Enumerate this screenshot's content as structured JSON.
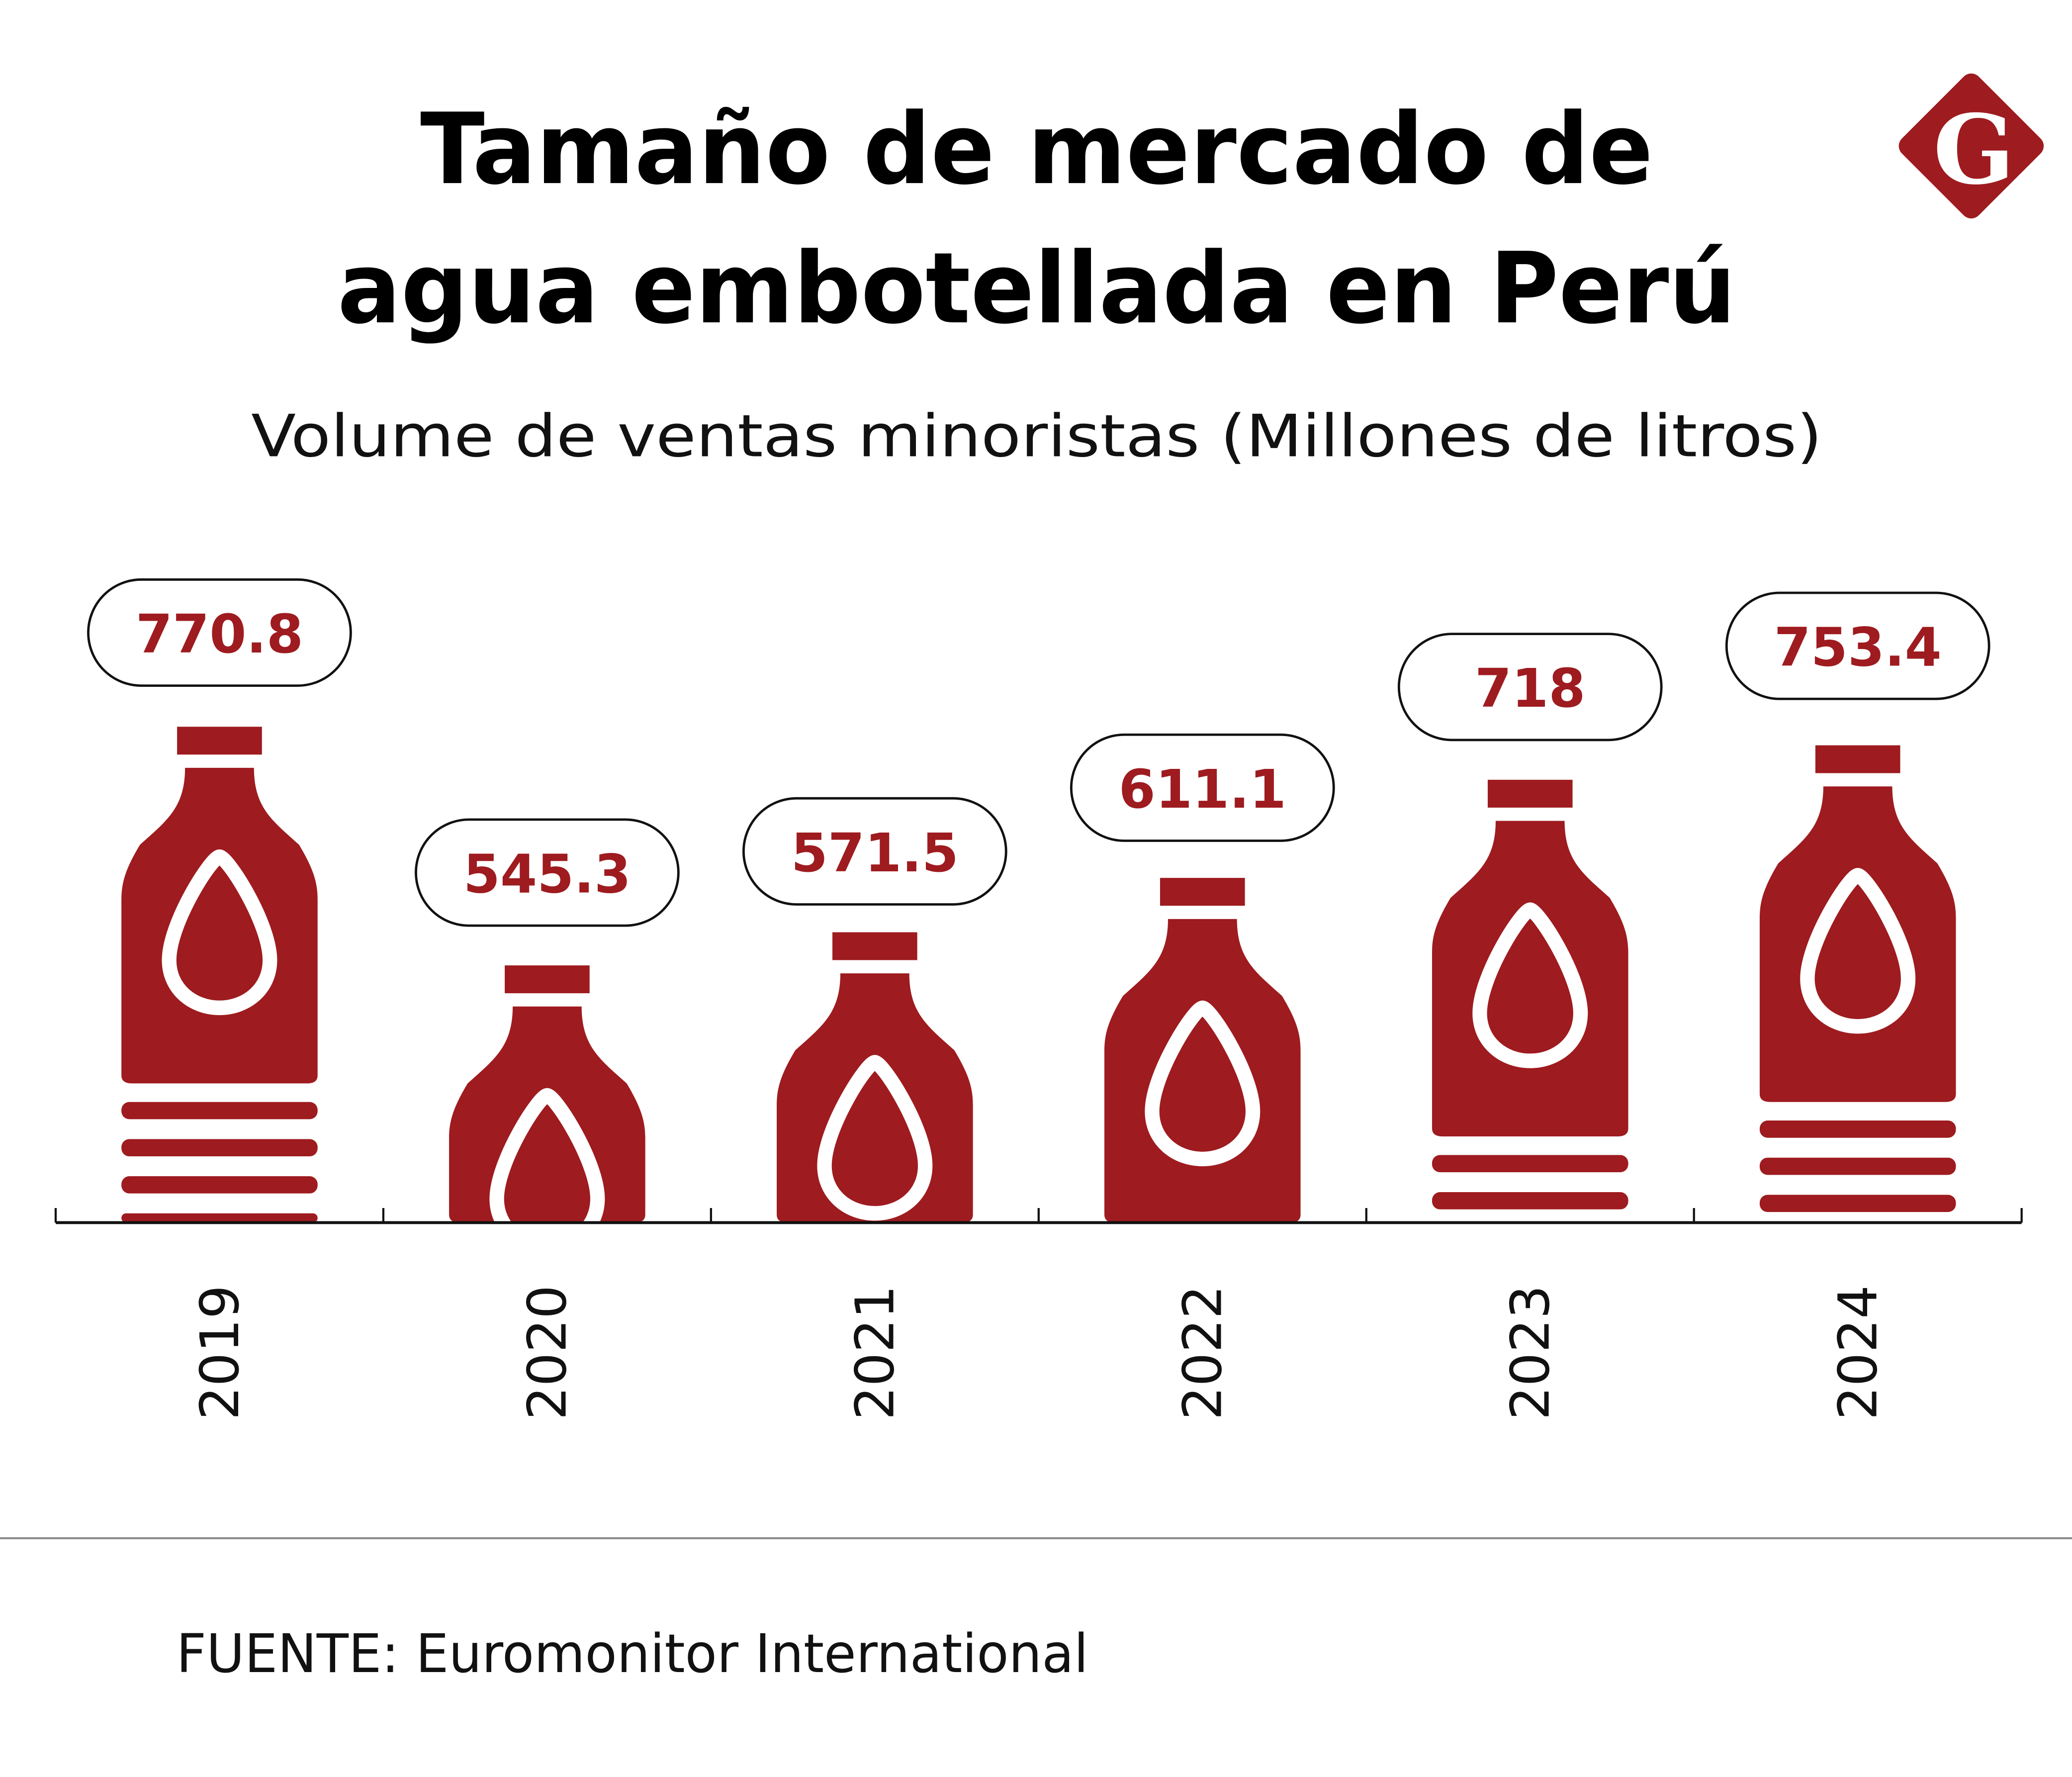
{
  "header": {
    "title_line1": "Tamaño de mercado de",
    "title_line2": "agua embotellada en Perú",
    "subtitle": "Volume de ventas minoristas (Millones de litros)"
  },
  "logo": {
    "letter": "G",
    "icon": "diamond-g-logo"
  },
  "footer": {
    "source": "FUENTE: Euromonitor International"
  },
  "colors": {
    "accent": "#9E1B1F",
    "text": "#000000",
    "axis": "#111111",
    "divider": "#888888"
  },
  "chart_data": {
    "type": "bar",
    "style": "pictogram-bottles",
    "title": "Tamaño de mercado de agua embotellada en Perú",
    "subtitle": "Volume de ventas minoristas (Millones de litros)",
    "xlabel": "",
    "ylabel": "Millones de litros",
    "categories": [
      "2019",
      "2020",
      "2021",
      "2022",
      "2023",
      "2024"
    ],
    "values": [
      770.8,
      545.3,
      571.5,
      611.1,
      718,
      753.4
    ],
    "value_labels": [
      "770.8",
      "545.3",
      "571.5",
      "611.1",
      "718",
      "753.4"
    ],
    "grid": false,
    "legend": "none",
    "source": "FUENTE: Euromonitor International"
  }
}
